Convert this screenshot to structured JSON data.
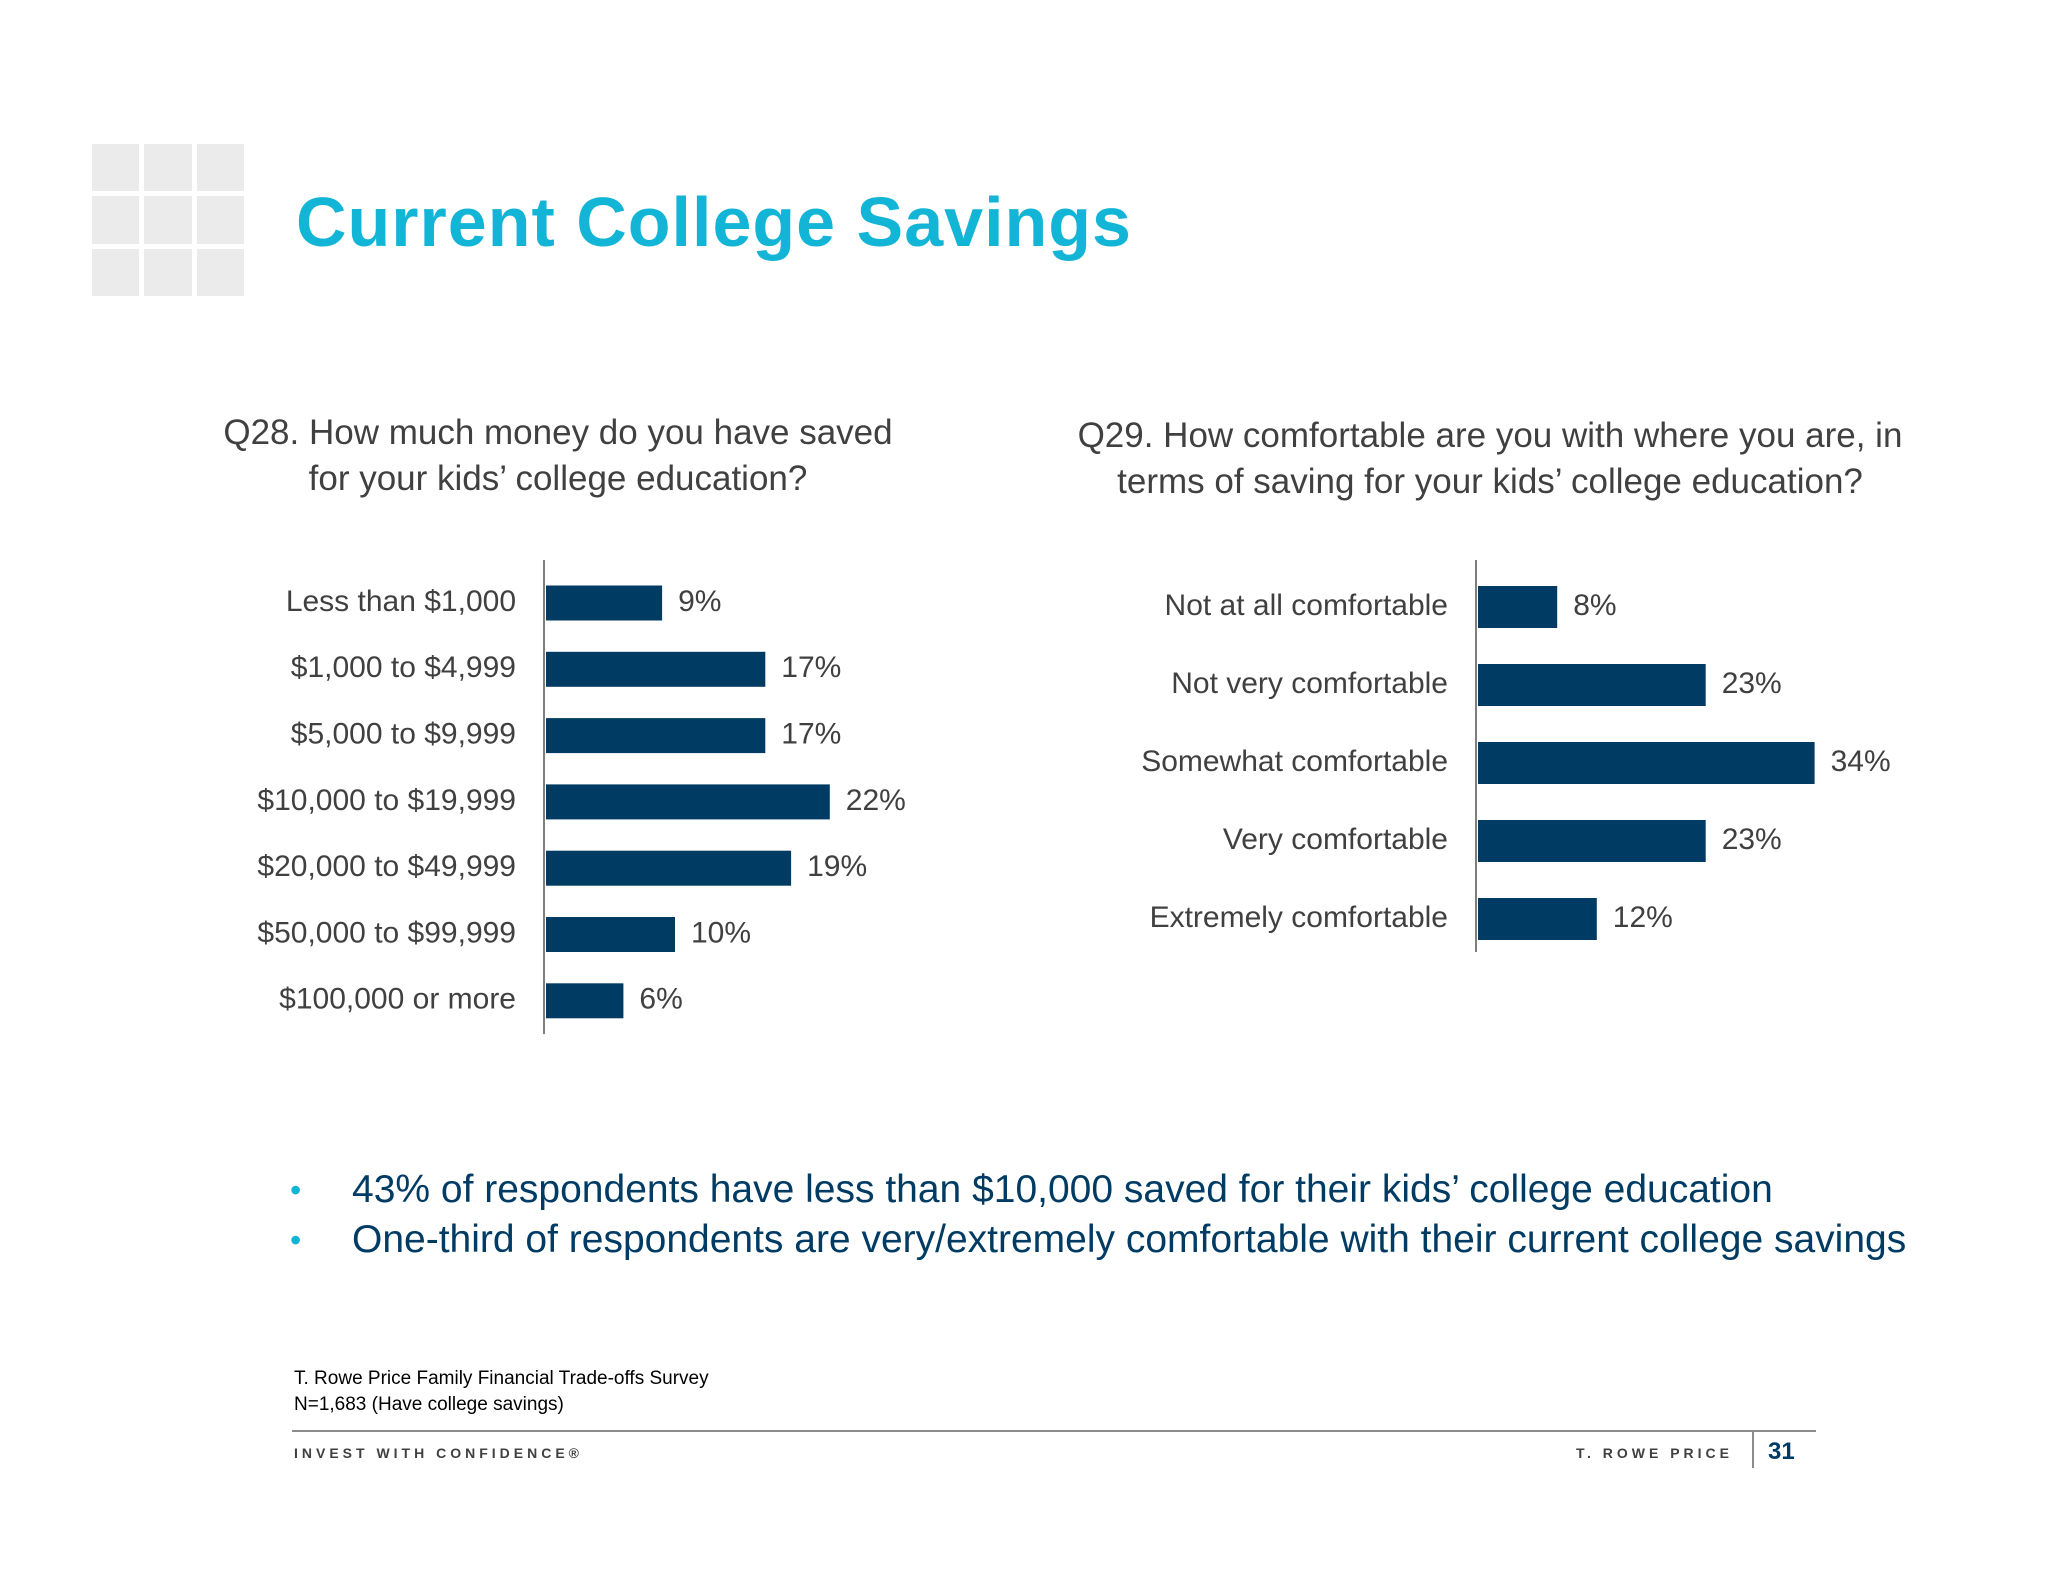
{
  "title": "Current College Savings",
  "colors": {
    "title": "#13b5d6",
    "bar": "#003b64",
    "bullet": "#13b5d6",
    "bullet_text": "#003b64"
  },
  "q28": "Q28. How much money do you have saved for your kids’ college education?",
  "q29": "Q29. How comfortable are you with where you are, in terms of saving for your kids’ college education?",
  "chart_data": [
    {
      "type": "bar",
      "orientation": "horizontal",
      "categories": [
        "Less than $1,000",
        "$1,000 to $4,999",
        "$5,000 to $9,999",
        "$10,000 to $19,999",
        "$20,000 to $49,999",
        "$50,000 to $99,999",
        "$100,000 or more"
      ],
      "values": [
        9,
        17,
        17,
        22,
        19,
        10,
        6
      ],
      "data_labels": [
        "9%",
        "17%",
        "17%",
        "22%",
        "19%",
        "10%",
        "6%"
      ],
      "unit": "%",
      "grid": false
    },
    {
      "type": "bar",
      "orientation": "horizontal",
      "categories": [
        "Not at all comfortable",
        "Not very comfortable",
        "Somewhat comfortable",
        "Very comfortable",
        "Extremely comfortable"
      ],
      "values": [
        8,
        23,
        34,
        23,
        12
      ],
      "data_labels": [
        "8%",
        "23%",
        "34%",
        "23%",
        "12%"
      ],
      "unit": "%",
      "grid": false
    }
  ],
  "bullets": [
    "43% of respondents have less than $10,000 saved for their kids’ college education",
    "One-third of respondents are very/extremely comfortable with their current college savings"
  ],
  "bullet_symbol": "•",
  "source_line1": "T. Rowe Price Family Financial Trade-offs Survey",
  "source_line2": "N=1,683 (Have college savings)",
  "footer_left": "INVEST WITH CONFIDENCE®",
  "footer_right": "T. ROWE PRICE",
  "page_number": "31"
}
